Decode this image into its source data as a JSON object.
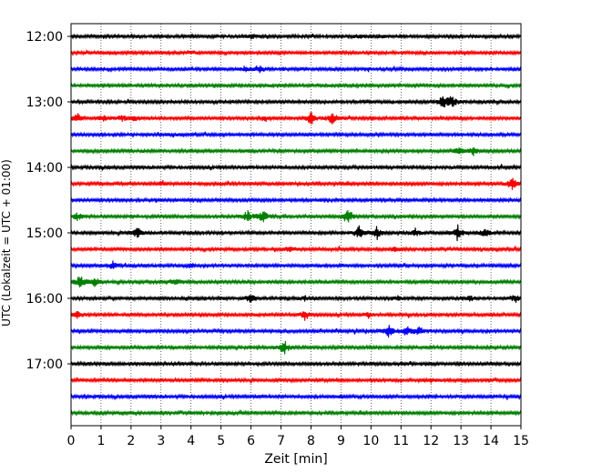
{
  "chart_data": {
    "type": "line",
    "title": "",
    "xlabel": "Zeit  [min]",
    "ylabel": "UTC (Lokalzeit = UTC + 01:00)",
    "xlim": [
      0,
      15
    ],
    "x_ticks": [
      "0",
      "1",
      "2",
      "3",
      "4",
      "5",
      "6",
      "7",
      "8",
      "9",
      "10",
      "11",
      "12",
      "13",
      "14",
      "15"
    ],
    "y_tick_labels": [
      "12:00",
      "13:00",
      "14:00",
      "15:00",
      "16:00",
      "17:00"
    ],
    "vertical_grid": true,
    "grid_style": "dotted",
    "trace_colors": [
      "#000000",
      "#ff0000",
      "#0000ff",
      "#008000"
    ],
    "traces": [
      {
        "start": "12:00",
        "events": [
          [
            6.0,
            3
          ],
          [
            9.6,
            2
          ],
          [
            10.3,
            2
          ]
        ]
      },
      {
        "start": "12:15",
        "events": [
          [
            4.0,
            2
          ]
        ]
      },
      {
        "start": "12:30",
        "events": [
          [
            5.8,
            3
          ],
          [
            6.3,
            4
          ]
        ]
      },
      {
        "start": "12:45",
        "events": []
      },
      {
        "start": "13:00",
        "events": [
          [
            12.4,
            10
          ],
          [
            12.7,
            8
          ]
        ]
      },
      {
        "start": "13:15",
        "events": [
          [
            0.2,
            6
          ],
          [
            1.1,
            5
          ],
          [
            1.7,
            4
          ],
          [
            2.1,
            3
          ],
          [
            6.5,
            2
          ],
          [
            8.0,
            9
          ],
          [
            8.7,
            8
          ]
        ]
      },
      {
        "start": "13:30",
        "events": []
      },
      {
        "start": "13:45",
        "events": [
          [
            12.9,
            5
          ],
          [
            13.4,
            6
          ]
        ]
      },
      {
        "start": "14:00",
        "events": []
      },
      {
        "start": "14:15",
        "events": [
          [
            3.0,
            3
          ],
          [
            14.7,
            8
          ]
        ]
      },
      {
        "start": "14:30",
        "events": []
      },
      {
        "start": "14:45",
        "events": [
          [
            0.2,
            5
          ],
          [
            5.9,
            8
          ],
          [
            6.4,
            9
          ],
          [
            9.2,
            9
          ]
        ]
      },
      {
        "start": "15:00",
        "events": [
          [
            2.2,
            7
          ],
          [
            9.6,
            9
          ],
          [
            10.2,
            8
          ],
          [
            11.5,
            4
          ],
          [
            12.9,
            10
          ],
          [
            13.8,
            6
          ]
        ]
      },
      {
        "start": "15:15",
        "events": [
          [
            7.3,
            5
          ],
          [
            10.8,
            3
          ]
        ]
      },
      {
        "start": "15:30",
        "events": [
          [
            1.4,
            6
          ],
          [
            4.0,
            2
          ]
        ]
      },
      {
        "start": "15:45",
        "events": [
          [
            0.3,
            9
          ],
          [
            0.8,
            6
          ],
          [
            3.5,
            3
          ]
        ]
      },
      {
        "start": "16:00",
        "events": [
          [
            6.0,
            6
          ],
          [
            7.8,
            3
          ],
          [
            10.9,
            3
          ],
          [
            13.3,
            3
          ],
          [
            14.8,
            5
          ]
        ]
      },
      {
        "start": "16:15",
        "events": [
          [
            0.2,
            6
          ],
          [
            7.8,
            6
          ],
          [
            9.9,
            3
          ]
        ]
      },
      {
        "start": "16:30",
        "events": [
          [
            10.6,
            8
          ],
          [
            11.2,
            7
          ],
          [
            11.6,
            5
          ]
        ]
      },
      {
        "start": "16:45",
        "events": [
          [
            7.1,
            9
          ]
        ]
      },
      {
        "start": "17:00",
        "events": []
      },
      {
        "start": "17:15",
        "events": [
          [
            12.0,
            3
          ]
        ]
      },
      {
        "start": "17:30",
        "events": [
          [
            9.0,
            2
          ]
        ]
      },
      {
        "start": "17:45",
        "events": []
      }
    ]
  }
}
